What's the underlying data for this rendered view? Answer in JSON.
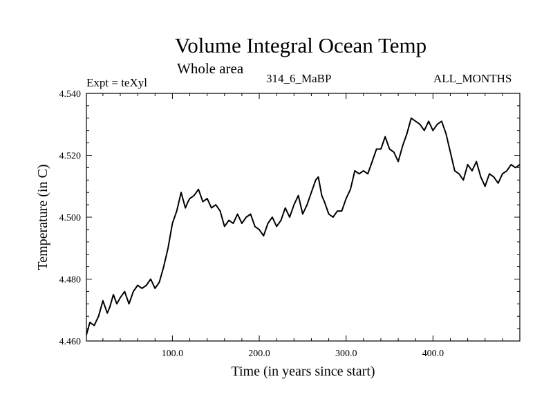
{
  "chart_data": {
    "type": "line",
    "title": "Volume Integral Ocean Temp",
    "subtitle": "Whole area",
    "experiment_label": "Expt = teXyl",
    "run_label": "314_6_MaBP",
    "months_label": "ALL_MONTHS",
    "xlabel": "Time (in years since start)",
    "ylabel": "Temperature (in C)",
    "xlim": [
      1,
      500
    ],
    "ylim": [
      4.46,
      4.54
    ],
    "x_ticks": [
      100,
      200,
      300,
      400
    ],
    "x_tick_labels": [
      "100.0",
      "200.0",
      "300.0",
      "400.0"
    ],
    "y_ticks": [
      4.46,
      4.48,
      4.5,
      4.52,
      4.54
    ],
    "y_tick_labels": [
      "4.460",
      "4.480",
      "4.500",
      "4.520",
      "4.540"
    ],
    "grid": false,
    "series": [
      {
        "color": "#000000",
        "x": [
          1,
          5,
          10,
          15,
          20,
          25,
          28,
          32,
          36,
          40,
          45,
          50,
          55,
          60,
          65,
          70,
          75,
          80,
          85,
          90,
          95,
          100,
          105,
          110,
          115,
          118,
          120,
          125,
          130,
          135,
          140,
          145,
          150,
          155,
          160,
          165,
          170,
          175,
          180,
          185,
          190,
          195,
          200,
          205,
          210,
          215,
          220,
          225,
          230,
          235,
          240,
          245,
          250,
          255,
          260,
          265,
          268,
          272,
          275,
          280,
          285,
          290,
          295,
          300,
          305,
          310,
          315,
          320,
          325,
          330,
          335,
          340,
          345,
          350,
          355,
          360,
          365,
          370,
          375,
          380,
          385,
          390,
          395,
          400,
          405,
          410,
          415,
          420,
          425,
          430,
          435,
          440,
          445,
          450,
          455,
          460,
          465,
          470,
          475,
          480,
          485,
          490,
          495,
          500
        ],
        "y": [
          4.462,
          4.466,
          4.465,
          4.468,
          4.473,
          4.469,
          4.471,
          4.475,
          4.472,
          4.474,
          4.476,
          4.472,
          4.476,
          4.478,
          4.477,
          4.478,
          4.48,
          4.477,
          4.479,
          4.484,
          4.49,
          4.498,
          4.502,
          4.508,
          4.503,
          4.505,
          4.506,
          4.507,
          4.509,
          4.505,
          4.506,
          4.503,
          4.504,
          4.502,
          4.497,
          4.499,
          4.498,
          4.501,
          4.498,
          4.5,
          4.501,
          4.497,
          4.496,
          4.494,
          4.498,
          4.5,
          4.497,
          4.499,
          4.503,
          4.5,
          4.504,
          4.507,
          4.501,
          4.504,
          4.508,
          4.512,
          4.513,
          4.507,
          4.505,
          4.501,
          4.5,
          4.502,
          4.502,
          4.506,
          4.509,
          4.515,
          4.514,
          4.515,
          4.514,
          4.518,
          4.522,
          4.522,
          4.526,
          4.522,
          4.521,
          4.518,
          4.523,
          4.527,
          4.532,
          4.531,
          4.53,
          4.528,
          4.531,
          4.528,
          4.53,
          4.531,
          4.527,
          4.521,
          4.515,
          4.514,
          4.512,
          4.517,
          4.515,
          4.518,
          4.513,
          4.51,
          4.514,
          4.513,
          4.511,
          4.514,
          4.515,
          4.517,
          4.516,
          4.517
        ]
      }
    ]
  }
}
